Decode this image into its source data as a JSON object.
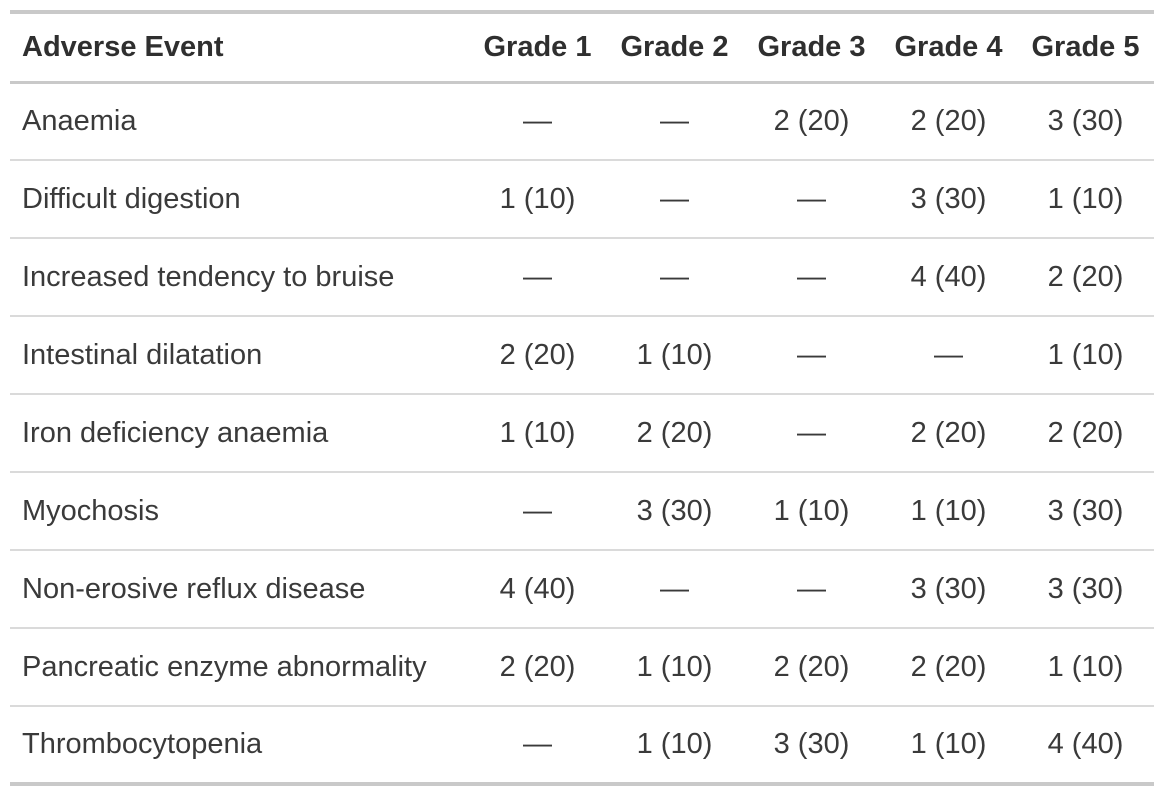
{
  "table": {
    "columns": [
      "Adverse Event",
      "Grade 1",
      "Grade 2",
      "Grade 3",
      "Grade 4",
      "Grade 5"
    ],
    "rows": [
      {
        "event": "Anaemia",
        "grades": [
          "—",
          "—",
          "2 (20)",
          "2 (20)",
          "3 (30)"
        ]
      },
      {
        "event": "Difficult digestion",
        "grades": [
          "1 (10)",
          "—",
          "—",
          "3 (30)",
          "1 (10)"
        ]
      },
      {
        "event": "Increased tendency to bruise",
        "grades": [
          "—",
          "—",
          "—",
          "4 (40)",
          "2 (20)"
        ]
      },
      {
        "event": "Intestinal dilatation",
        "grades": [
          "2 (20)",
          "1 (10)",
          "—",
          "—",
          "1 (10)"
        ]
      },
      {
        "event": "Iron deficiency anaemia",
        "grades": [
          "1 (10)",
          "2 (20)",
          "—",
          "2 (20)",
          "2 (20)"
        ]
      },
      {
        "event": "Myochosis",
        "grades": [
          "—",
          "3 (30)",
          "1 (10)",
          "1 (10)",
          "3 (30)"
        ]
      },
      {
        "event": "Non-erosive reflux disease",
        "grades": [
          "4 (40)",
          "—",
          "—",
          "3 (30)",
          "3 (30)"
        ]
      },
      {
        "event": "Pancreatic enzyme abnormality",
        "grades": [
          "2 (20)",
          "1 (10)",
          "2 (20)",
          "2 (20)",
          "1 (10)"
        ]
      },
      {
        "event": "Thrombocytopenia",
        "grades": [
          "—",
          "1 (10)",
          "3 (30)",
          "1 (10)",
          "4 (40)"
        ]
      }
    ]
  },
  "colors": {
    "background": "#ffffff",
    "header_text": "#2f2f2f",
    "body_text": "#3a3a3a",
    "border_heavy": "#c9c9c9",
    "border_light": "#dadada"
  }
}
